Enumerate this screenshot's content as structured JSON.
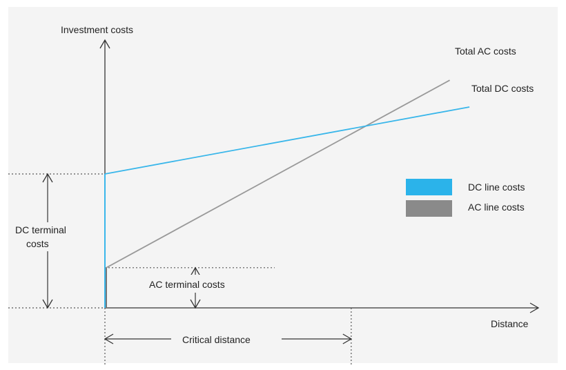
{
  "chart_data": {
    "type": "line",
    "title": "",
    "ylabel": "Investment costs",
    "xlabel": "Distance",
    "series": [
      {
        "name": "Total AC costs",
        "color": "#999999",
        "points": [
          [
            0,
            0.3
          ],
          [
            1.4,
            1.7
          ]
        ]
      },
      {
        "name": "Total DC costs",
        "color": "#38b6ea",
        "points": [
          [
            0,
            1.0
          ],
          [
            1.48,
            1.5
          ]
        ]
      }
    ],
    "legend": {
      "position": "right",
      "entries": [
        {
          "label": "DC line costs",
          "color": "#2bb3ea"
        },
        {
          "label": "AC line costs",
          "color": "#8a8a8a"
        }
      ]
    },
    "annotations": {
      "dc_terminal": {
        "line1": "DC terminal",
        "line2": "costs",
        "value": 1.0
      },
      "ac_terminal": {
        "text": "AC terminal costs",
        "value": 0.3
      },
      "critical_distance": {
        "text": "Critical distance",
        "value": 1.0
      }
    },
    "xlim": [
      0,
      1.76
    ],
    "ylim": [
      0,
      2.0
    ],
    "grid": false
  }
}
